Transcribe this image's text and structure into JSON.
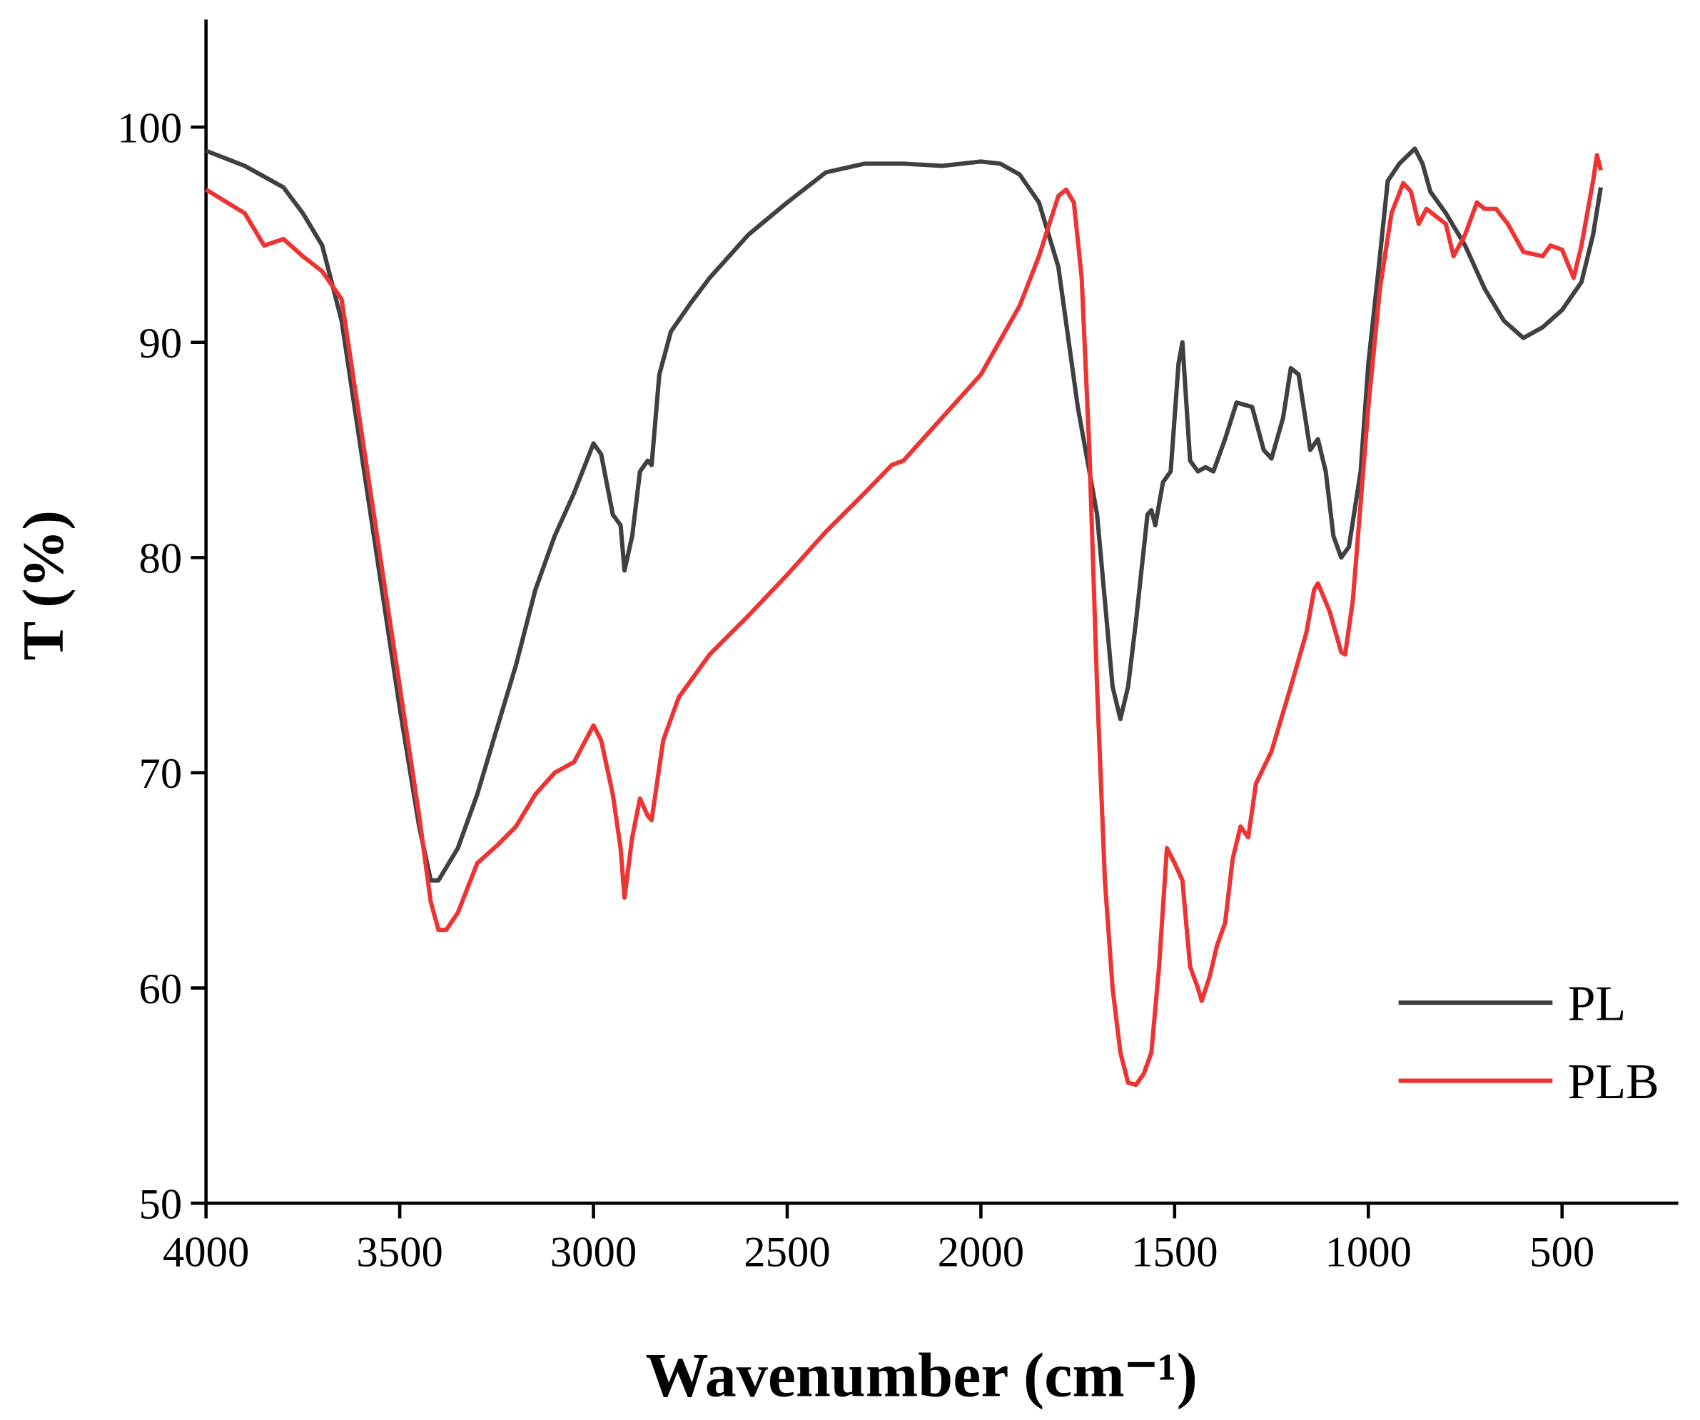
{
  "chart_data": {
    "type": "line",
    "x_label": "Wavenumber (cm⁻¹)",
    "y_label": "T (%)",
    "xlim": [
      4000,
      200
    ],
    "ylim": [
      50,
      105
    ],
    "xticks": [
      4000,
      3500,
      3000,
      2500,
      2000,
      1500,
      1000,
      500
    ],
    "yticks": [
      50,
      60,
      70,
      80,
      90,
      100
    ],
    "legend": "lower right",
    "series": [
      {
        "name": "PL",
        "color": "#404040",
        "x": [
          4000,
          3900,
          3800,
          3750,
          3700,
          3650,
          3600,
          3550,
          3500,
          3450,
          3420,
          3400,
          3350,
          3300,
          3250,
          3200,
          3150,
          3100,
          3050,
          3000,
          2980,
          2950,
          2930,
          2920,
          2900,
          2880,
          2860,
          2850,
          2830,
          2800,
          2750,
          2700,
          2600,
          2500,
          2400,
          2300,
          2200,
          2100,
          2000,
          1950,
          1900,
          1850,
          1800,
          1750,
          1720,
          1700,
          1680,
          1660,
          1640,
          1620,
          1600,
          1570,
          1560,
          1550,
          1530,
          1510,
          1490,
          1480,
          1460,
          1440,
          1420,
          1400,
          1370,
          1340,
          1300,
          1270,
          1250,
          1220,
          1200,
          1180,
          1150,
          1130,
          1110,
          1090,
          1070,
          1050,
          1020,
          1000,
          970,
          950,
          920,
          880,
          860,
          840,
          800,
          750,
          700,
          650,
          600,
          550,
          500,
          450,
          420,
          400
        ],
        "values": [
          98.9,
          98.2,
          97.2,
          96,
          94.5,
          91,
          85,
          79,
          73,
          67.5,
          65,
          65,
          66.5,
          69,
          72,
          75,
          78.5,
          81,
          83,
          85.3,
          84.8,
          82,
          81.5,
          79.4,
          81,
          84,
          84.5,
          84.3,
          88.5,
          90.5,
          91.8,
          93,
          95,
          96.5,
          97.9,
          98.3,
          98.3,
          98.2,
          98.4,
          98.3,
          97.8,
          96.5,
          93.5,
          87,
          84,
          82,
          78,
          74,
          72.5,
          74,
          77,
          82,
          82.2,
          81.5,
          83.5,
          84,
          89,
          90,
          84.5,
          84,
          84.2,
          84,
          85.5,
          87.2,
          87,
          85,
          84.6,
          86.5,
          88.8,
          88.5,
          85,
          85.5,
          84,
          81,
          80,
          80.5,
          84,
          89,
          94,
          97.5,
          98.3,
          99,
          98.3,
          97,
          96,
          94.5,
          92.5,
          91,
          90.2,
          90.7,
          91.5,
          92.8,
          95,
          97.2
        ]
      },
      {
        "name": "PLB",
        "color": "#ee3333",
        "x": [
          4000,
          3900,
          3850,
          3800,
          3750,
          3700,
          3650,
          3600,
          3550,
          3500,
          3450,
          3420,
          3400,
          3380,
          3350,
          3300,
          3250,
          3200,
          3150,
          3100,
          3050,
          3000,
          2980,
          2950,
          2930,
          2920,
          2900,
          2880,
          2860,
          2850,
          2820,
          2780,
          2700,
          2600,
          2500,
          2400,
          2300,
          2230,
          2200,
          2100,
          2000,
          1900,
          1850,
          1800,
          1780,
          1760,
          1740,
          1720,
          1700,
          1680,
          1660,
          1640,
          1620,
          1600,
          1580,
          1560,
          1540,
          1520,
          1500,
          1480,
          1460,
          1440,
          1430,
          1410,
          1390,
          1370,
          1350,
          1330,
          1310,
          1290,
          1250,
          1200,
          1160,
          1140,
          1130,
          1100,
          1070,
          1060,
          1040,
          1000,
          970,
          940,
          910,
          890,
          870,
          850,
          800,
          780,
          750,
          720,
          700,
          670,
          640,
          600,
          550,
          530,
          500,
          470,
          450,
          420,
          410,
          400
        ],
        "values": [
          97.1,
          96,
          94.5,
          94.8,
          94,
          93.3,
          92,
          86,
          80,
          74,
          68,
          64,
          62.7,
          62.7,
          63.5,
          65.8,
          66.6,
          67.5,
          69,
          70,
          70.5,
          72.2,
          71.5,
          69,
          66.5,
          64.2,
          67,
          68.8,
          68,
          67.8,
          71.5,
          73.5,
          75.5,
          77.3,
          79.2,
          81.2,
          83,
          84.3,
          84.5,
          86.5,
          88.5,
          91.7,
          94,
          96.8,
          97.1,
          96.5,
          93,
          85,
          74,
          65,
          60,
          57,
          55.6,
          55.5,
          56,
          57,
          61,
          66.5,
          65.8,
          65,
          61,
          60,
          59.4,
          60.5,
          62,
          63,
          66,
          67.5,
          67,
          69.5,
          71,
          74,
          76.5,
          78.5,
          78.8,
          77.5,
          75.6,
          75.5,
          78,
          87,
          92.5,
          96,
          97.4,
          97,
          95.5,
          96.2,
          95.5,
          94,
          95,
          96.5,
          96.2,
          96.2,
          95.5,
          94.2,
          94,
          94.5,
          94.3,
          93,
          94.5,
          97.5,
          98.7,
          98
        ]
      }
    ]
  }
}
